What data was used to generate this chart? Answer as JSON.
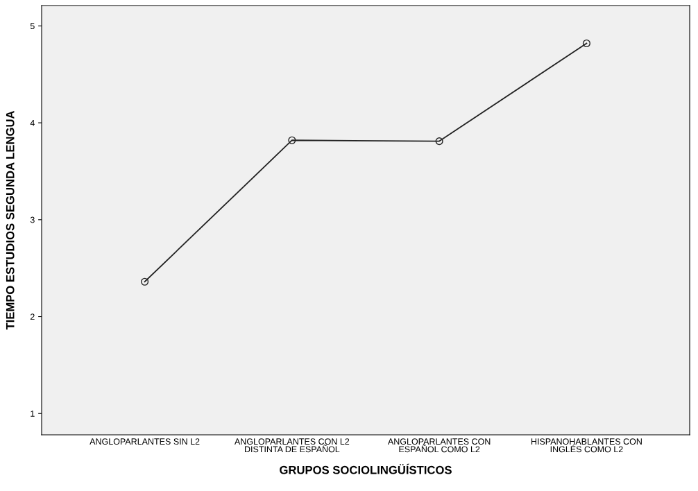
{
  "chart_data": {
    "type": "line",
    "xlabel": "GRUPOS SOCIOLINGÜÍSTICOS",
    "ylabel": "TIEMPO ESTUDIOS SEGUNDA LENGUA",
    "categories": [
      "ANGLOPARLANTES SIN L2",
      "ANGLOPARLANTES CON L2\nDISTINTA DE ESPAÑOL",
      "ANGLOPARLANTES CON\nESPAÑOL COMO L2",
      "HISPANOHABLANTES CON\nINGLÉS COMO L2"
    ],
    "series": [
      {
        "color": "#222222",
        "values": [
          2.36,
          3.82,
          3.81,
          4.82
        ]
      }
    ],
    "ylim": [
      0.78,
      5.21
    ],
    "yticks": [
      1,
      2,
      3,
      4,
      5
    ],
    "marker": "circle",
    "line_style": "solid",
    "grid": false,
    "legend": false
  }
}
